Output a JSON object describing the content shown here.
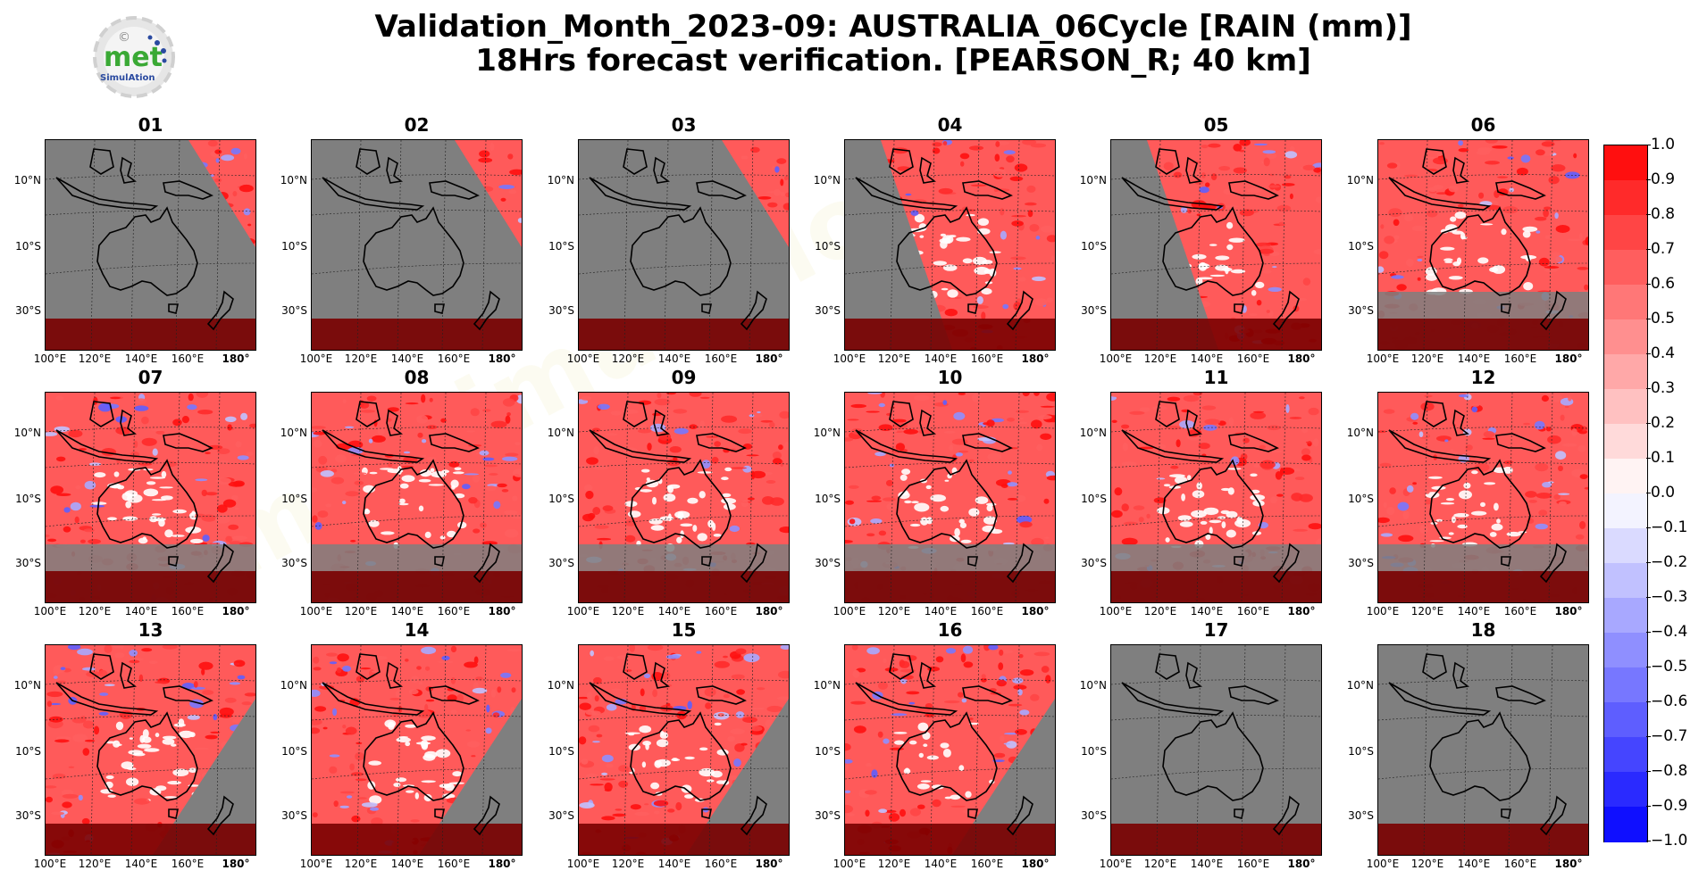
{
  "header": {
    "title_line1": "Validation_Month_2023-09: AUSTRALIA_06Cycle [RAIN (mm)]",
    "title_line2": "18Hrs forecast verification.  [PEARSON_R; 40 km]"
  },
  "logo": {
    "text": "met",
    "subtext": "SimulAtion",
    "symbol": "©"
  },
  "watermark": "metsimulation",
  "axes": {
    "y_ticks": [
      "10°N",
      "10°S",
      "30°S"
    ],
    "x_ticks": [
      "100°E",
      "120°E",
      "140°E",
      "160°E",
      "180°"
    ]
  },
  "colorbar": {
    "ticks": [
      "1.0",
      "0.9",
      "0.8",
      "0.7",
      "0.6",
      "0.5",
      "0.4",
      "0.3",
      "0.2",
      "0.1",
      "0.0",
      "−0.1",
      "−0.2",
      "−0.3",
      "−0.4",
      "−0.5",
      "−0.6",
      "−0.7",
      "−0.8",
      "−0.9",
      "−1.0"
    ],
    "colors_top_to_bottom": [
      "#ff0f0f",
      "#ff2a2a",
      "#ff4545",
      "#ff5e5e",
      "#ff7777",
      "#ff8f8f",
      "#ffa8a8",
      "#ffc1c1",
      "#ffdada",
      "#fff3f3",
      "#f3f3ff",
      "#dadaff",
      "#c1c1ff",
      "#a8a8ff",
      "#8f8fff",
      "#7777ff",
      "#5e5eff",
      "#4545ff",
      "#2a2aff",
      "#0f0fff"
    ]
  },
  "colors": {
    "night_shade": "#7f7f7f",
    "dark_red": "#7a0000",
    "land_dry": "#ffffff"
  },
  "panels": [
    {
      "label": "01",
      "shade": "day_right"
    },
    {
      "label": "02",
      "shade": "day_right"
    },
    {
      "label": "03",
      "shade": "day_right"
    },
    {
      "label": "04",
      "shade": "night_left"
    },
    {
      "label": "05",
      "shade": "night_left"
    },
    {
      "label": "06",
      "shade": "night_bottom"
    },
    {
      "label": "07",
      "shade": "night_bottom"
    },
    {
      "label": "08",
      "shade": "night_bottom"
    },
    {
      "label": "09",
      "shade": "night_bottom"
    },
    {
      "label": "10",
      "shade": "night_bottom"
    },
    {
      "label": "11",
      "shade": "night_bottom"
    },
    {
      "label": "12",
      "shade": "night_bottom"
    },
    {
      "label": "13",
      "shade": "night_right"
    },
    {
      "label": "14",
      "shade": "night_right"
    },
    {
      "label": "15",
      "shade": "night_right"
    },
    {
      "label": "16",
      "shade": "night_right"
    },
    {
      "label": "17",
      "shade": "all_night"
    },
    {
      "label": "18",
      "shade": "all_night"
    }
  ]
}
